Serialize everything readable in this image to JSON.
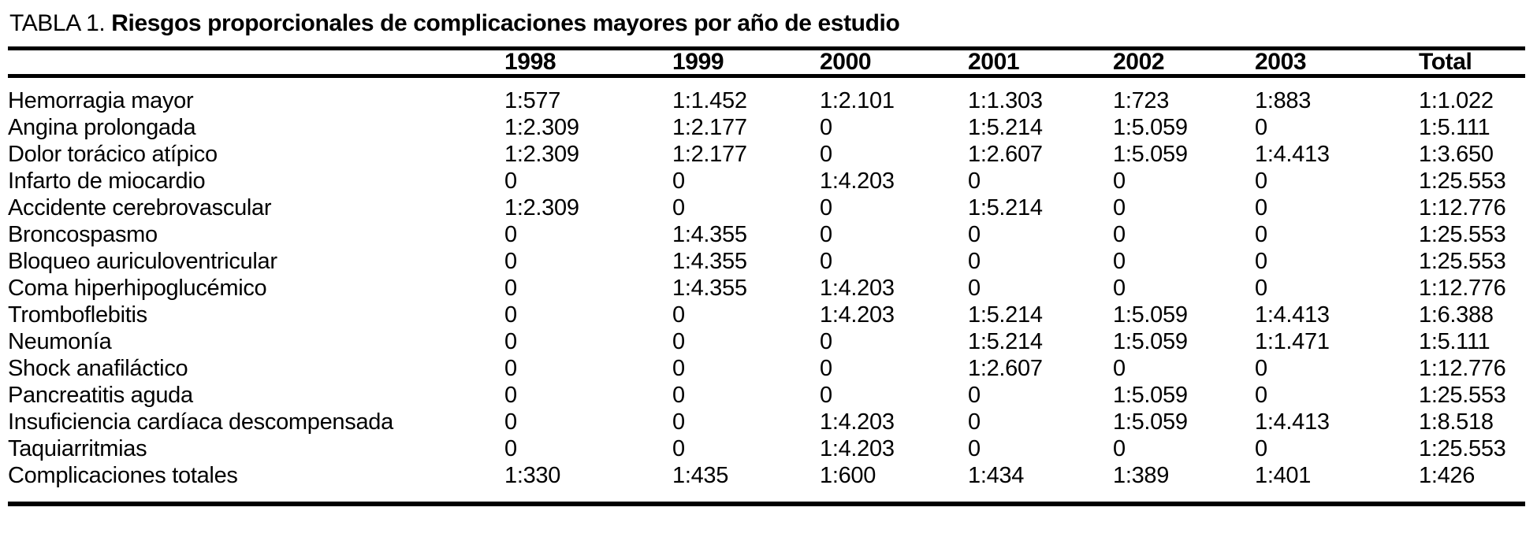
{
  "table": {
    "title_prefix": "TABLA 1.",
    "title_bold": "Riesgos proporcionales de complicaciones mayores por año de estudio",
    "columns": [
      "",
      "1998",
      "1999",
      "2000",
      "2001",
      "2002",
      "2003",
      "Total"
    ],
    "rows": [
      {
        "label": "Hemorragia mayor",
        "values": [
          "1:577",
          "1:1.452",
          "1:2.101",
          "1:1.303",
          "1:723",
          "1:883",
          "1:1.022"
        ]
      },
      {
        "label": "Angina prolongada",
        "values": [
          "1:2.309",
          "1:2.177",
          "0",
          "1:5.214",
          "1:5.059",
          "0",
          "1:5.111"
        ]
      },
      {
        "label": "Dolor torácico atípico",
        "values": [
          "1:2.309",
          "1:2.177",
          "0",
          "1:2.607",
          "1:5.059",
          "1:4.413",
          "1:3.650"
        ]
      },
      {
        "label": "Infarto de miocardio",
        "values": [
          "0",
          "0",
          "1:4.203",
          "0",
          "0",
          "0",
          "1:25.553"
        ]
      },
      {
        "label": "Accidente cerebrovascular",
        "values": [
          "1:2.309",
          "0",
          "0",
          "1:5.214",
          "0",
          "0",
          "1:12.776"
        ]
      },
      {
        "label": "Broncospasmo",
        "values": [
          "0",
          "1:4.355",
          "0",
          "0",
          "0",
          "0",
          "1:25.553"
        ]
      },
      {
        "label": "Bloqueo auriculoventricular",
        "values": [
          "0",
          "1:4.355",
          "0",
          "0",
          "0",
          "0",
          "1:25.553"
        ]
      },
      {
        "label": "Coma hiperhipoglucémico",
        "values": [
          "0",
          "1:4.355",
          "1:4.203",
          "0",
          "0",
          "0",
          "1:12.776"
        ]
      },
      {
        "label": "Tromboflebitis",
        "values": [
          "0",
          "0",
          "1:4.203",
          "1:5.214",
          "1:5.059",
          "1:4.413",
          "1:6.388"
        ]
      },
      {
        "label": "Neumonía",
        "values": [
          "0",
          "0",
          "0",
          "1:5.214",
          "1:5.059",
          "1:1.471",
          "1:5.111"
        ]
      },
      {
        "label": "Shock anafiláctico",
        "values": [
          "0",
          "0",
          "0",
          "1:2.607",
          "0",
          "0",
          "1:12.776"
        ]
      },
      {
        "label": "Pancreatitis aguda",
        "values": [
          "0",
          "0",
          "0",
          "0",
          "1:5.059",
          "0",
          "1:25.553"
        ]
      },
      {
        "label": "Insuficiencia cardíaca descompensada",
        "values": [
          "0",
          "0",
          "1:4.203",
          "0",
          "1:5.059",
          "1:4.413",
          "1:8.518"
        ]
      },
      {
        "label": "Taquiarritmias",
        "values": [
          "0",
          "0",
          "1:4.203",
          "0",
          "0",
          "0",
          "1:25.553"
        ]
      },
      {
        "label": "Complicaciones totales",
        "values": [
          "1:330",
          "1:435",
          "1:600",
          "1:434",
          "1:389",
          "1:401",
          "1:426"
        ]
      }
    ]
  }
}
